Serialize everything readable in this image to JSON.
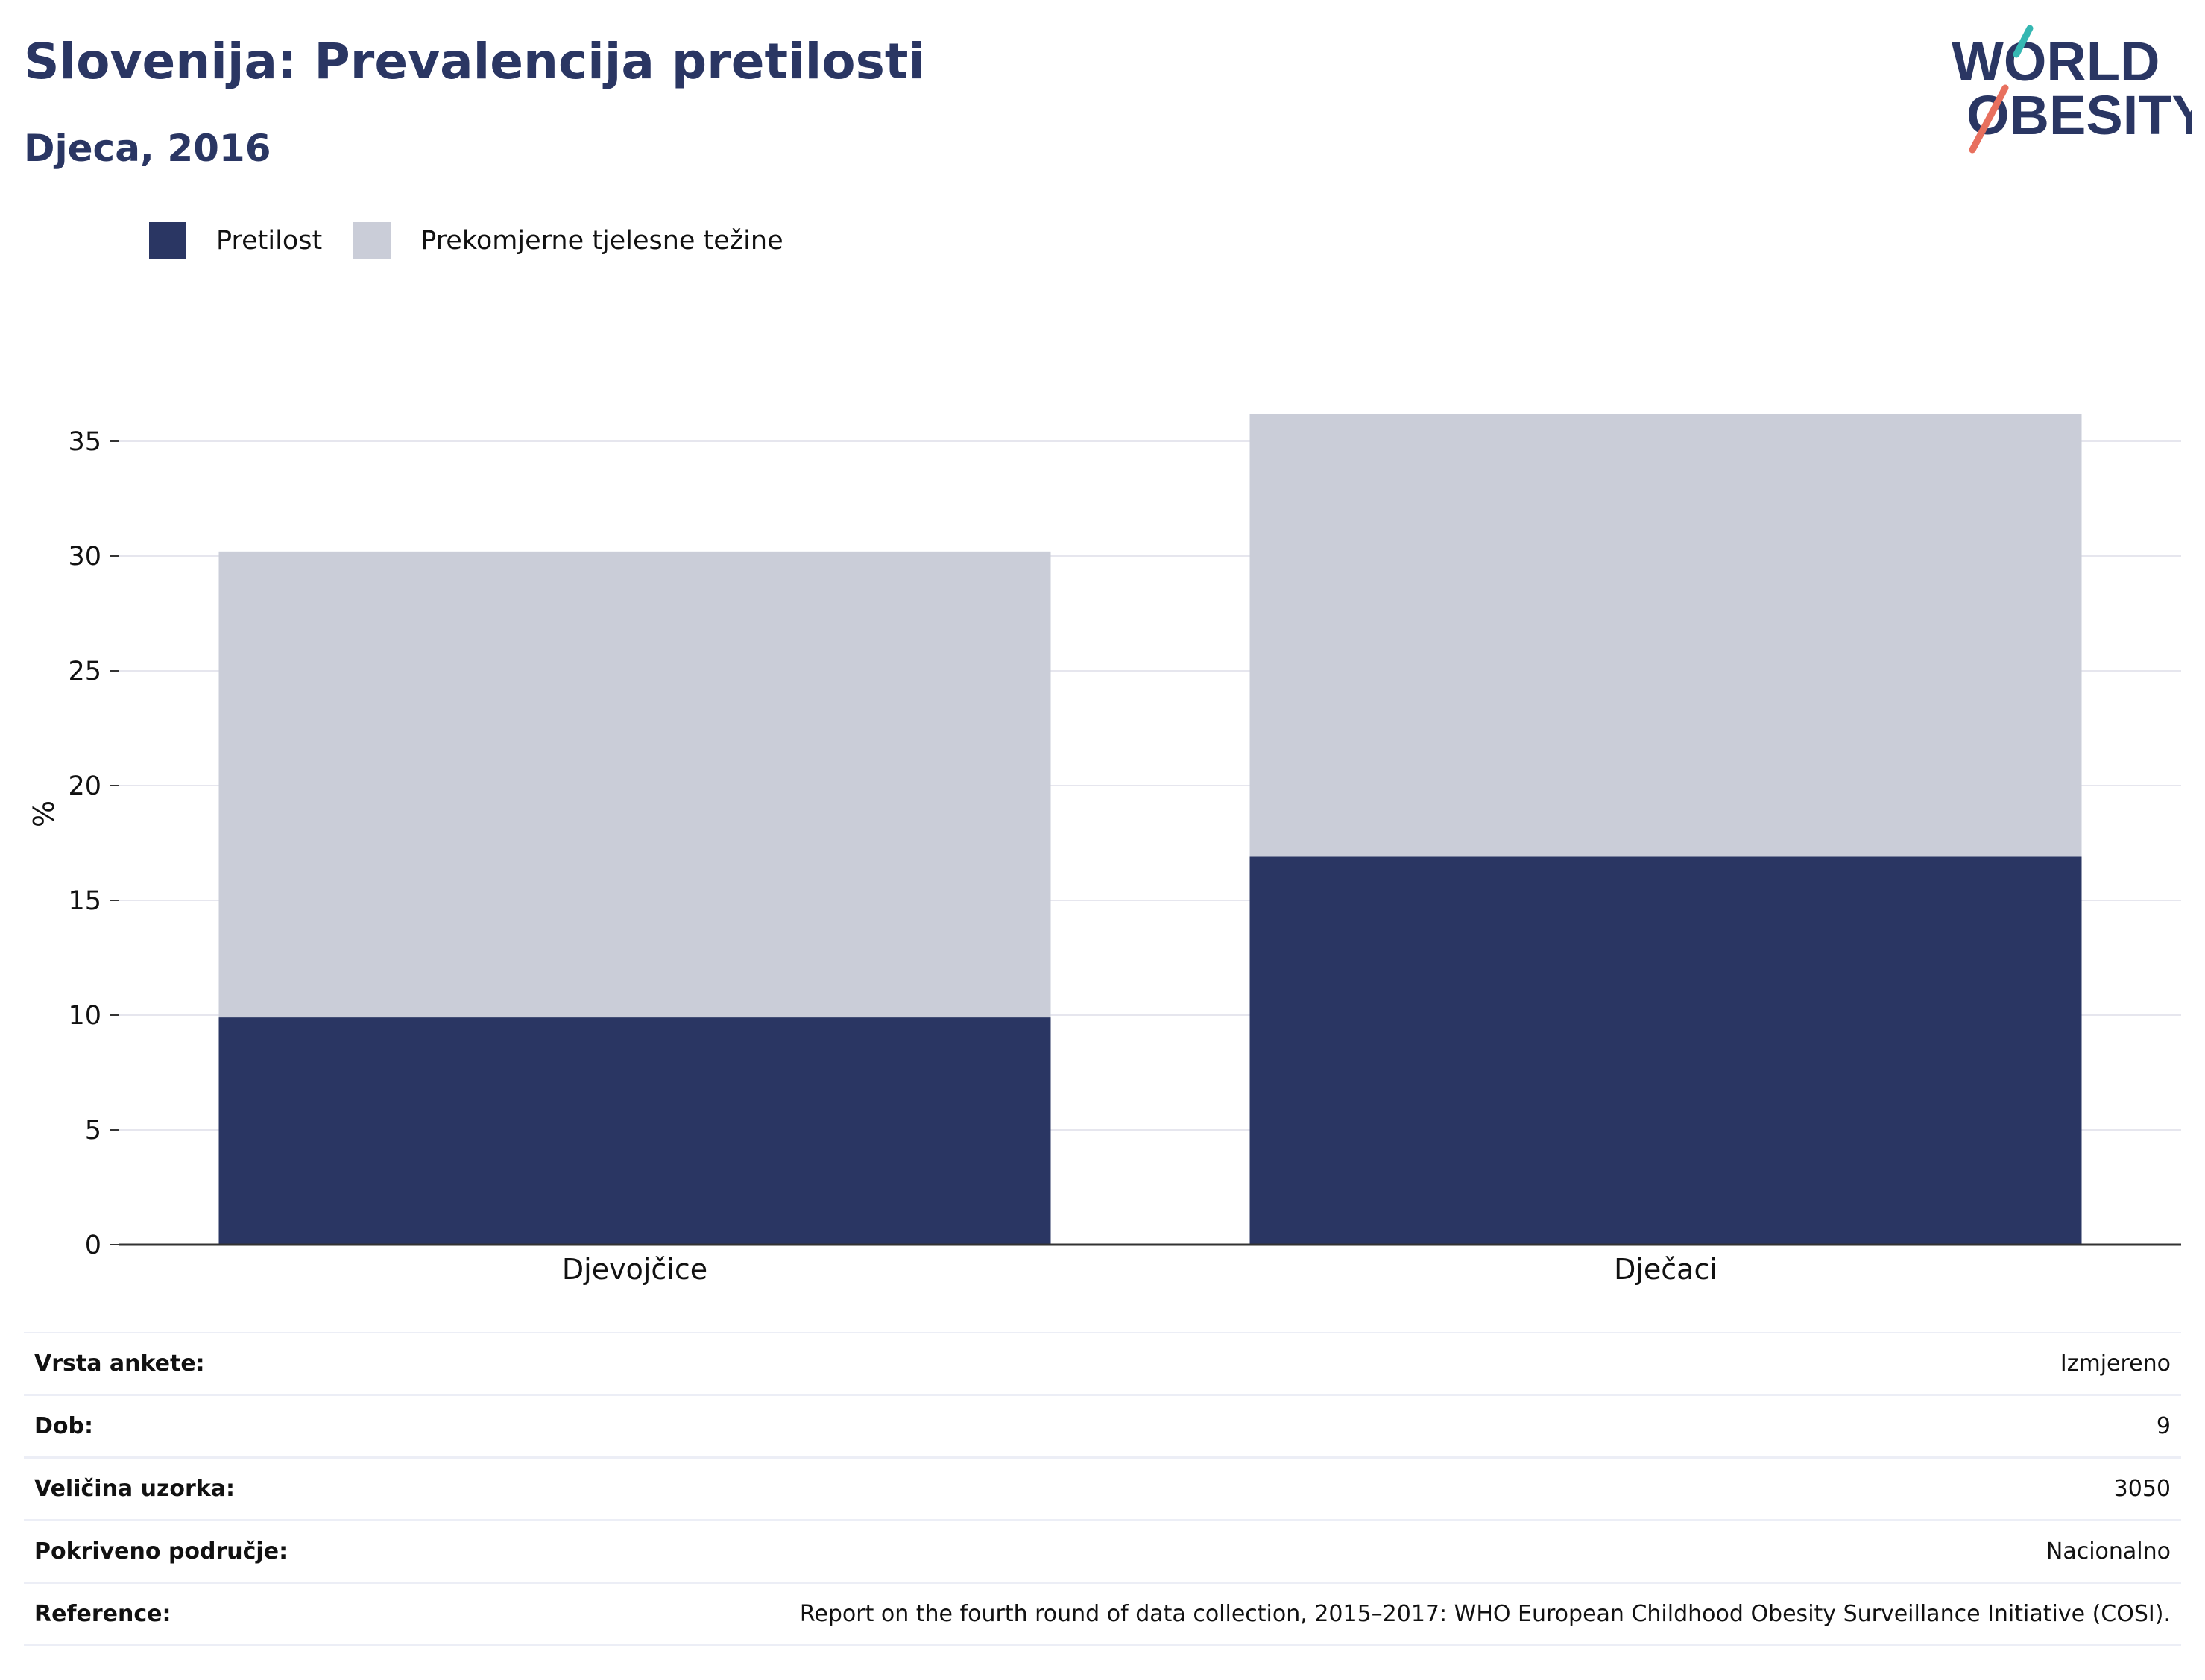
{
  "header": {
    "title": "Slovenija: Prevalencija pretilosti",
    "subtitle": "Djeca, 2016"
  },
  "logo": {
    "line1": "WORLD",
    "line2": "OBESITY",
    "icon": "world-obesity-logo"
  },
  "colors": {
    "obesity": "#2a3663",
    "overweight": "#cacdd8",
    "title": "#2a3663",
    "logo_teal": "#35b7b2",
    "logo_coral": "#e8705e",
    "grid": "#e6e6ee",
    "axis": "#333333"
  },
  "chart_data": {
    "type": "bar",
    "stacked": true,
    "categories": [
      "Djevojčice",
      "Dječaci"
    ],
    "series": [
      {
        "name": "Pretilost",
        "values": [
          9.9,
          16.9
        ]
      },
      {
        "name": "Prekomjerne tjelesne težine",
        "values": [
          20.3,
          19.3
        ]
      }
    ],
    "ylabel": "%",
    "ylim": [
      0,
      36.5
    ],
    "yticks": [
      0,
      5,
      10,
      15,
      20,
      25,
      30,
      35
    ],
    "grid": true,
    "legend": "top-left"
  },
  "info_table": [
    {
      "label": "Vrsta ankete:",
      "value": "Izmjereno"
    },
    {
      "label": "Dob:",
      "value": "9"
    },
    {
      "label": "Veličina uzorka:",
      "value": "3050"
    },
    {
      "label": "Pokriveno područje:",
      "value": "Nacionalno"
    },
    {
      "label": "Reference:",
      "value": "Report on the fourth round of data collection, 2015–2017: WHO European Childhood Obesity Surveillance Initiative (COSI)."
    }
  ]
}
